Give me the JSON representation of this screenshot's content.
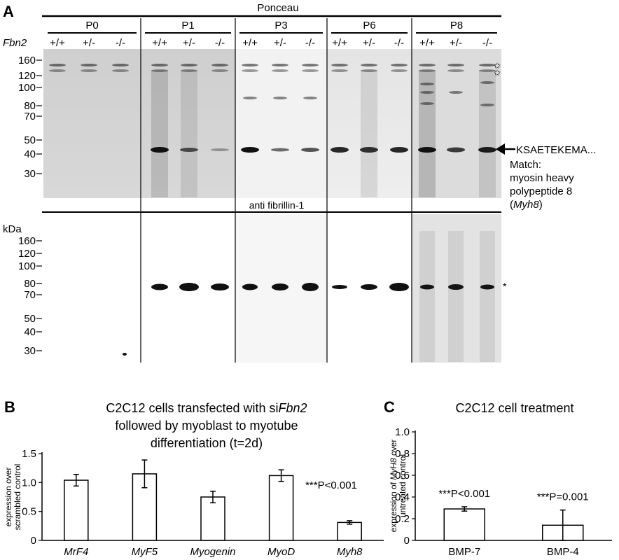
{
  "panel_a": {
    "letter": "A",
    "ponceau_label": "Ponceau",
    "anti_label": "anti fibrillin-1",
    "genotype_row_label": "Fbn2",
    "kda_label": "kDa",
    "groups": [
      {
        "name": "P0",
        "lanes": [
          "+/+",
          "+/-",
          "-/-"
        ]
      },
      {
        "name": "P1",
        "lanes": [
          "+/+",
          "+/-",
          "-/-"
        ]
      },
      {
        "name": "P3",
        "lanes": [
          "+/+",
          "+/-",
          "-/-"
        ]
      },
      {
        "name": "P6",
        "lanes": [
          "+/+",
          "+/-",
          "-/-"
        ]
      },
      {
        "name": "P8",
        "lanes": [
          "+/+",
          "+/-",
          "-/-"
        ]
      }
    ],
    "ponceau_markers": [
      "160",
      "120",
      "100",
      "80",
      "70",
      "50",
      "40",
      "30"
    ],
    "anti_markers": [
      "160",
      "120",
      "100",
      "80",
      "70",
      "50",
      "40",
      "30"
    ],
    "arrow_annotation": {
      "sequence": "KSAETEKEMA...",
      "line1": "Match:",
      "line2": "myosin heavy",
      "line3": "polypeptide 8",
      "gene_open": "(",
      "gene": "Myh8",
      "gene_close": ")"
    },
    "star_symbol": "✩",
    "asterisk": "*"
  },
  "panel_b": {
    "letter": "B",
    "title_line1": "C2C12 cells transfected with si",
    "title_gene": "Fbn2",
    "title_line2": "followed by myoblast to myotube",
    "title_line3": "differentiation (t=2d)",
    "ylabel_line1": "expression over",
    "ylabel_line2": "scrambled control",
    "significance": "***P<0.001",
    "chart_data": {
      "type": "bar",
      "categories": [
        "MrF4",
        "MyF5",
        "Myogenin",
        "MyoD",
        "Myh8"
      ],
      "values": [
        1.04,
        1.15,
        0.75,
        1.12,
        0.31
      ],
      "errors": [
        0.1,
        0.24,
        0.1,
        0.1,
        0.03
      ],
      "yticks": [
        "0",
        "0.5",
        "1.0",
        "1.5"
      ],
      "ylim": [
        0,
        1.5
      ]
    }
  },
  "panel_c": {
    "letter": "C",
    "title": "C2C12 cell treatment",
    "ylabel_line1_pre": "expression of ",
    "ylabel_gene": "MyH8",
    "ylabel_line1_post": " over",
    "ylabel_line2": "untreated control",
    "chart_data": {
      "type": "bar",
      "categories": [
        "BMP-7",
        "BMP-4"
      ],
      "values": [
        0.29,
        0.14
      ],
      "errors": [
        0.02,
        0.14
      ],
      "significance": [
        "***P<0.001",
        "***P=0.001"
      ],
      "yticks": [
        "0",
        "0.2",
        "0.4",
        "0.6",
        "0.8",
        "1.0"
      ],
      "ylim": [
        0,
        1.0
      ]
    }
  }
}
